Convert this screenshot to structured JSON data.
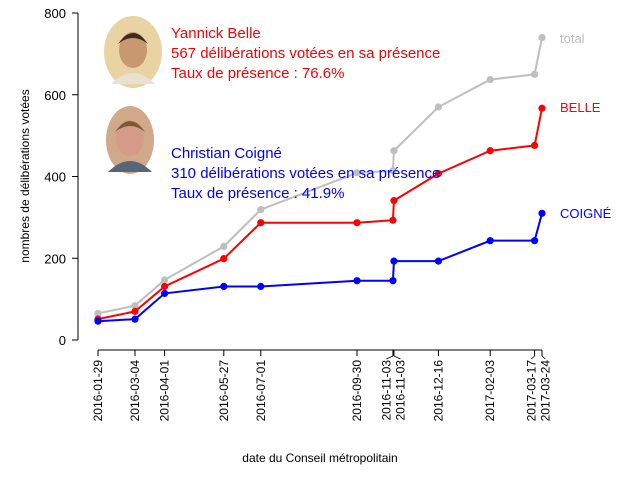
{
  "chart_data": {
    "type": "line",
    "xlabel": "date du Conseil métropolitain",
    "ylabel": "nombres de délibérations votées",
    "ylim": [
      0,
      800
    ],
    "yticks": [
      0,
      200,
      400,
      600,
      800
    ],
    "x": [
      "2016-01-29",
      "2016-03-04",
      "2016-04-01",
      "2016-05-27",
      "2016-07-01",
      "2016-09-30",
      "2016-11-03",
      "2016-11-03",
      "2016-12-16",
      "2017-02-03",
      "2017-03-17",
      "2017-03-24"
    ],
    "series": [
      {
        "name": "total",
        "color": "#bebebe",
        "values": [
          65,
          84,
          147,
          229,
          319,
          409,
          414,
          463,
          570,
          637,
          650,
          740
        ]
      },
      {
        "name": "BELLE",
        "color": "#ff0000",
        "values": [
          51,
          70,
          131,
          199,
          287,
          287,
          293,
          341,
          407,
          463,
          476,
          567
        ]
      },
      {
        "name": "COIGNÉ",
        "color": "#0000ff",
        "values": [
          46,
          51,
          114,
          131,
          131,
          145,
          145,
          193,
          193,
          243,
          243,
          310
        ]
      }
    ],
    "annotations": [
      {
        "color": "#ff0000",
        "lines": [
          "Yannick Belle",
          "567 délibérations votées en sa présence",
          "Taux de présence : 76.6%"
        ]
      },
      {
        "color": "#0000ff",
        "lines": [
          "Christian Coigné",
          "310 délibérations votées en sa présence",
          "Taux de présence : 41.9%"
        ]
      }
    ]
  }
}
